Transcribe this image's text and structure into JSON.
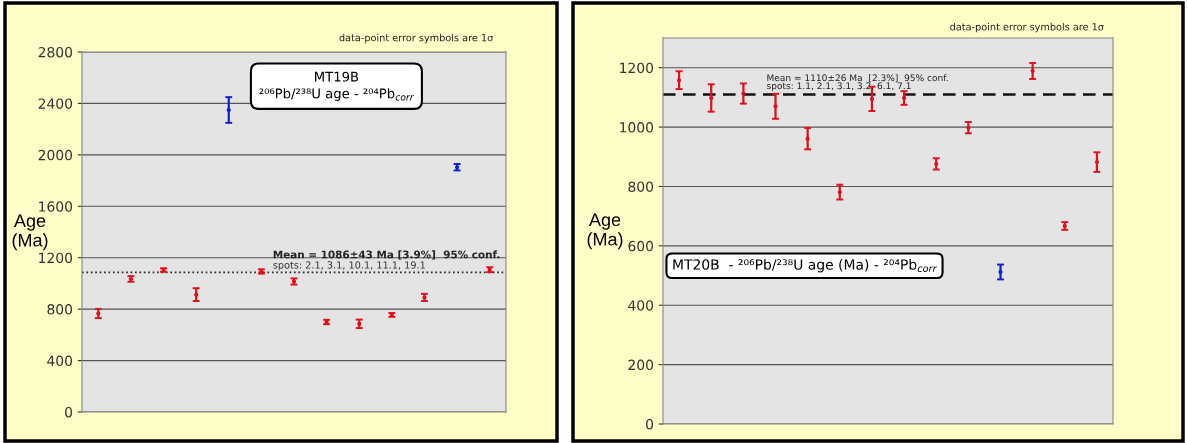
{
  "chart_data": [
    {
      "type": "scatter",
      "title": "MT19B",
      "subtitle": "²⁰⁶Pb/²³⁸U age - ²⁰⁴Pb$_{corr}$",
      "ylabel": "Age\n(Ma)",
      "grid": "y",
      "categories": [
        null,
        null,
        null,
        null,
        null,
        null,
        null,
        null,
        null,
        null,
        null,
        null,
        null
      ],
      "ylim": [
        0,
        2800
      ],
      "yticks": [
        0,
        400,
        800,
        1200,
        1600,
        2000,
        2400,
        2800
      ],
      "series": [
        {
          "color": "#e01020",
          "values": [
            766,
            1035,
            1104,
            913,
            null,
            1093,
            1015,
            700,
            686,
            755,
            891,
            null,
            1107
          ],
          "errors": [
            36,
            22,
            14,
            50,
            null,
            17,
            24,
            17,
            33,
            15,
            28,
            null,
            19
          ]
        },
        {
          "color": "#1020d0",
          "values": [
            null,
            null,
            null,
            null,
            2349,
            null,
            null,
            null,
            null,
            null,
            null,
            1904,
            null
          ],
          "errors": [
            null,
            null,
            null,
            null,
            100,
            null,
            null,
            null,
            null,
            null,
            null,
            25,
            null
          ]
        }
      ],
      "ref_lines": [
        {
          "axis": "y",
          "value": 1086,
          "label": "Mean = 1086±43 Ma [3.9%]  95% conf.",
          "color": "#222222",
          "line_style": "dotted"
        }
      ],
      "annotations": [
        "spots: 2.1, 3.1, 10.1, 11.1, 19.1",
        "data-point error symbols are 1σ"
      ]
    },
    {
      "type": "scatter",
      "title": "MT20B  - ²⁰⁶Pb/²³⁸U age (Ma) - ²⁰⁴Pb$_{corr}$",
      "ylabel": "Age\n(Ma)",
      "grid": "y",
      "categories": [
        null,
        null,
        null,
        null,
        null,
        null,
        null,
        null,
        null,
        null,
        null,
        null,
        null,
        null
      ],
      "ylim": [
        0,
        1300
      ],
      "yticks": [
        0,
        200,
        400,
        600,
        800,
        1000,
        1200
      ],
      "series": [
        {
          "color": "#e01020",
          "values": [
            1158,
            1098,
            1113,
            1070,
            961,
            781,
            1095,
            1098,
            876,
            998,
            null,
            1189,
            667,
            882
          ],
          "errors": [
            30,
            46,
            34,
            42,
            36,
            25,
            41,
            23,
            19,
            19,
            null,
            27,
            13,
            33
          ]
        },
        {
          "color": "#1020d0",
          "values": [
            null,
            null,
            null,
            null,
            null,
            null,
            null,
            null,
            null,
            null,
            512,
            null,
            null,
            null
          ],
          "errors": [
            null,
            null,
            null,
            null,
            null,
            null,
            null,
            null,
            null,
            null,
            25,
            null,
            null,
            null
          ]
        }
      ],
      "ref_lines": [
        {
          "axis": "y",
          "value": 1110,
          "label": "Mean = 1110±26 Ma  [2.3%]  95% conf.",
          "color": "#111111",
          "line_style": "dashed"
        }
      ],
      "annotations": [
        "spots: 1.1, 2.1, 3.1, 3.2, 6.1, 7.1",
        "data-point error symbols are 1σ"
      ]
    }
  ]
}
